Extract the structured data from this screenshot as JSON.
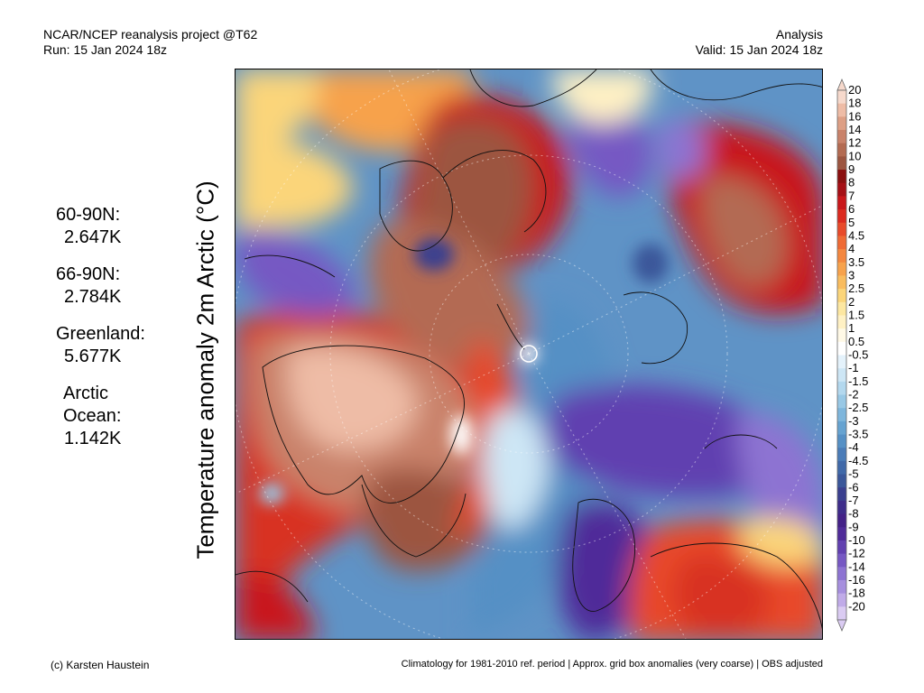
{
  "header": {
    "left_line1": "NCAR/NCEP reanalysis project @T62",
    "left_line2": "Run: 15 Jan 2024 18z",
    "right_line1": "Analysis",
    "right_line2": "Valid: 15 Jan 2024 18z"
  },
  "ylabel": "Temperature anomaly 2m Arctic (°C)",
  "stats": [
    {
      "label": "60-90N:",
      "value": "2.647K"
    },
    {
      "label": "66-90N:",
      "value": "2.784K"
    },
    {
      "label": "Greenland:",
      "value": "5.677K"
    },
    {
      "label_line1": "Arctic",
      "label_line2": "Ocean:",
      "value": "1.142K"
    }
  ],
  "colorbar": {
    "levels": [
      "20",
      "18",
      "16",
      "14",
      "12",
      "10",
      "9",
      "8",
      "7",
      "6",
      "5",
      "4.5",
      "4",
      "3.5",
      "3",
      "2.5",
      "2",
      "1.5",
      "1",
      "0.5",
      "-0.5",
      "-1",
      "-1.5",
      "-2",
      "-2.5",
      "-3",
      "-3.5",
      "-4",
      "-4.5",
      "-5",
      "-6",
      "-7",
      "-8",
      "-9",
      "-10",
      "-12",
      "-14",
      "-16",
      "-18",
      "-20"
    ],
    "colors": [
      "#f6d9cc",
      "#eebca6",
      "#dd9f85",
      "#c9826a",
      "#b36b52",
      "#9c5540",
      "#8a0f0f",
      "#a50f15",
      "#c9161a",
      "#dc2a1f",
      "#e84a2a",
      "#ef6a34",
      "#f4873f",
      "#f7a24c",
      "#f9bc5e",
      "#fbd57a",
      "#fde7a1",
      "#fff1c4",
      "#fff9e6",
      "#ffffff",
      "#e4f2fb",
      "#cde6f5",
      "#b3d8ee",
      "#98c8e5",
      "#7eb6dc",
      "#66a3d1",
      "#5590c5",
      "#4a7cb8",
      "#4069a9",
      "#3a579a",
      "#3a3f8f",
      "#3d2c8a",
      "#432187",
      "#4f2b99",
      "#6140b0",
      "#7658c3",
      "#8d73d2",
      "#a68fde",
      "#c0abe8",
      "#dacbf2"
    ]
  },
  "footer": {
    "left": "(c) Karsten Haustein",
    "right": "Climatology for 1981-2010 ref. period | Approx. grid box anomalies (very coarse) | OBS adjusted"
  }
}
